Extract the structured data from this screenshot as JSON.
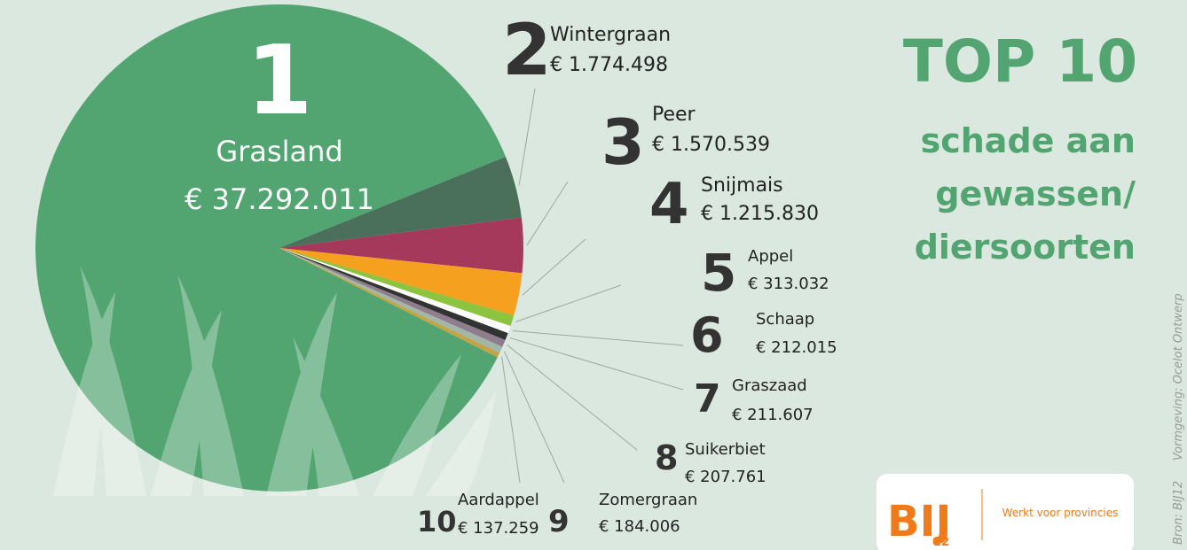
{
  "chart_data": {
    "type": "pie",
    "title": "TOP 10",
    "subtitle_lines": [
      "schade aan",
      "gewassen/",
      "diersoorten"
    ],
    "ranks": [
      "1",
      "2",
      "3",
      "4",
      "5",
      "6",
      "7",
      "8",
      "9",
      "10"
    ],
    "categories": [
      "Grasland",
      "Wintergraan",
      "Peer",
      "Snijmais",
      "Appel",
      "Schaap",
      "Graszaad",
      "Suikerbiet",
      "Zomergraan",
      "Aardappel"
    ],
    "values": [
      37292011,
      1774498,
      1570539,
      1215830,
      313032,
      212015,
      211607,
      207761,
      184006,
      137259
    ],
    "value_labels": [
      "€ 37.292.011",
      "€ 1.774.498",
      "€ 1.570.539",
      "€ 1.215.830",
      "€ 313.032",
      "€ 212.015",
      "€ 211.607",
      "€ 207.761",
      "€ 184.006",
      "€ 137.259"
    ],
    "colors": [
      "#52a470",
      "#4a705b",
      "#a4395b",
      "#f5a01f",
      "#8dc43f",
      "#ffffff",
      "#333333",
      "#8e7e8d",
      "#a3b7a8",
      "#c1a546"
    ]
  },
  "logo": {
    "mark": "BIJ",
    "number": "12",
    "tagline": "Werkt voor provincies"
  },
  "credits": [
    "Bron: BIJ12",
    "Vormgeving: Ocelot Ontwerp"
  ]
}
